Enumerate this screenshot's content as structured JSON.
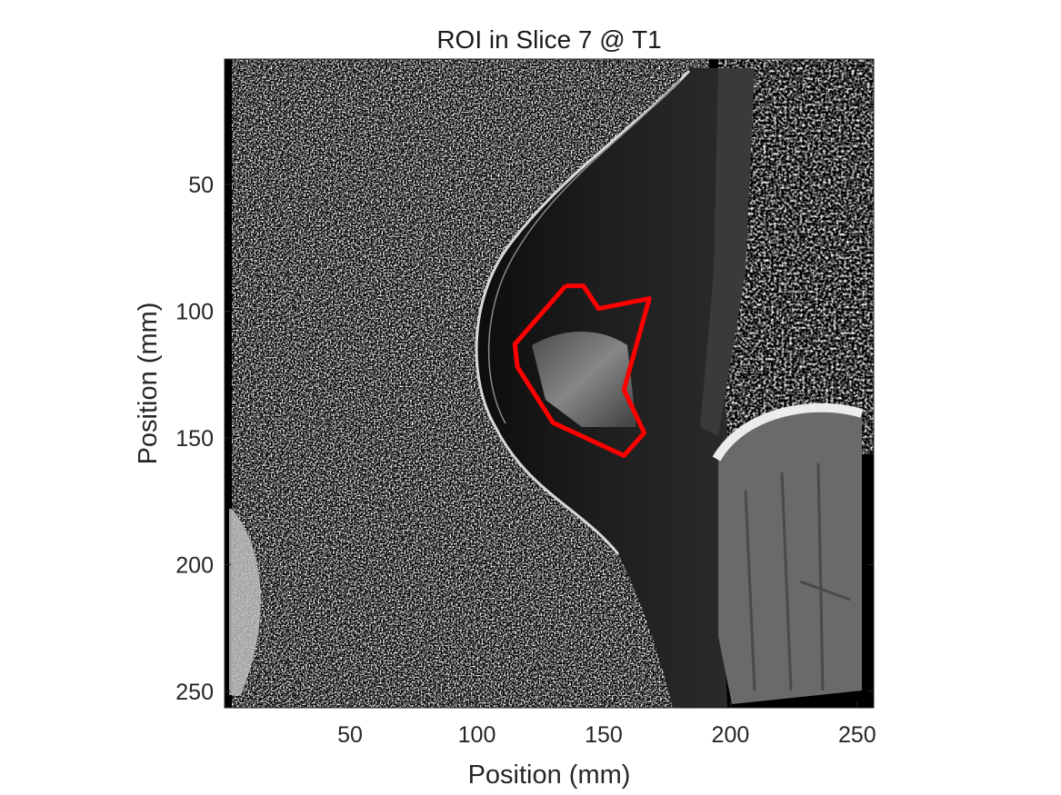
{
  "chart_data": {
    "type": "heatmap",
    "title": "ROI in Slice 7 @ T1",
    "xlabel": "Position (mm)",
    "ylabel": "Position (mm)",
    "xlim": [
      0.5,
      256.5
    ],
    "ylim": [
      0.5,
      256.5
    ],
    "y_reversed": true,
    "xticks": [
      50,
      100,
      150,
      200,
      250
    ],
    "yticks": [
      50,
      100,
      150,
      200,
      250
    ],
    "colormap": "gray",
    "roi": {
      "color": "#ff0000",
      "x": [
        135,
        142,
        148,
        168,
        158,
        166,
        158,
        130,
        116,
        115,
        135
      ],
      "y": [
        90,
        90,
        99,
        95,
        131,
        148,
        157,
        144,
        122,
        113,
        90
      ]
    }
  },
  "colors": {
    "roi": "#ff0000",
    "background": "#ffffff",
    "axis": "#262626"
  }
}
